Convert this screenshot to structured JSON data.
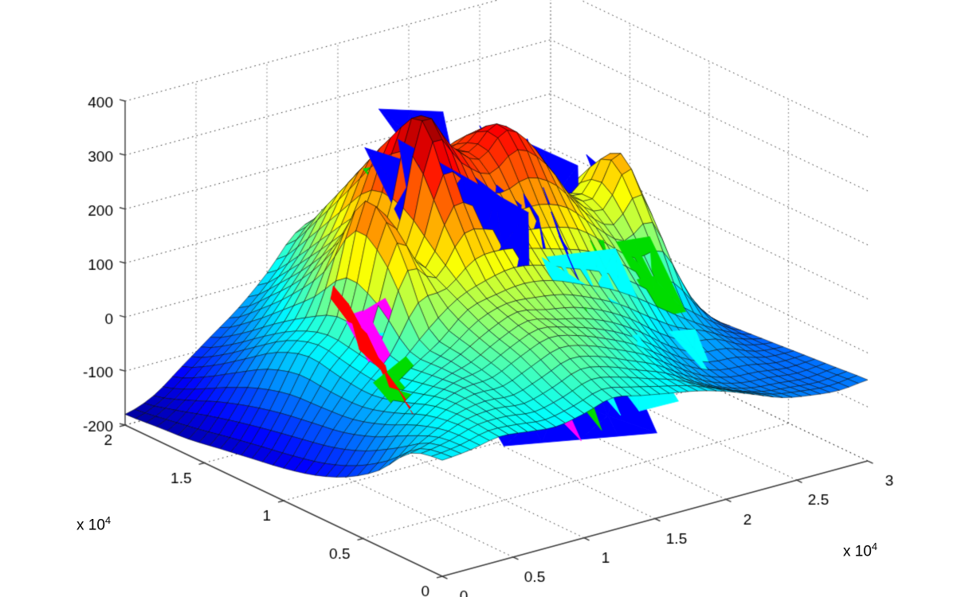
{
  "figure": {
    "background": "#ffffff"
  },
  "chart_data": {
    "type": "surface",
    "title": "",
    "colormap": "jet",
    "view": {
      "azimuth_deg": -37.5,
      "elevation_deg": 30,
      "projection": "orthographic"
    },
    "x_axis": {
      "label": "",
      "unit_scale": 10000,
      "range_units": [
        0,
        3
      ],
      "ticks": [
        "0",
        "0.5",
        "1",
        "1.5",
        "2",
        "2.5",
        "3"
      ],
      "exponent": {
        "base": "x 10",
        "power": "4"
      }
    },
    "y_axis": {
      "label": "",
      "unit_scale": 10000,
      "range_units": [
        0,
        2
      ],
      "ticks": [
        "0",
        "0.5",
        "1",
        "1.5",
        "2"
      ],
      "exponent": {
        "base": "x 10",
        "power": "4"
      }
    },
    "z_axis": {
      "label": "",
      "range": [
        -200,
        400
      ],
      "ticks": [
        "-200",
        "-100",
        "0",
        "100",
        "200",
        "300",
        "400"
      ]
    },
    "grid": {
      "style": "dotted",
      "wall_vertical_color": "#909090",
      "level_line_color": "#3c3c3c",
      "axis_line_color": "#3c3c3c",
      "tick_label_color": "#000000"
    },
    "surface": {
      "mesh_edge_color": "#000000",
      "x_units": [
        0,
        0.2,
        0.4,
        0.6,
        0.8,
        1.0,
        1.2,
        1.4,
        1.6,
        1.8,
        2.0,
        2.2,
        2.4,
        2.6,
        2.8,
        3.0
      ],
      "y_units": [
        0,
        0.2,
        0.4,
        0.6,
        0.8,
        1.0,
        1.2,
        1.4,
        1.6,
        1.8,
        2.0
      ],
      "z_grid_rows_by_y": [
        [
          15,
          20,
          30,
          25,
          20,
          30,
          45,
          35,
          25,
          15,
          0,
          -20,
          -40,
          -50,
          -55,
          -50
        ],
        [
          0,
          15,
          35,
          40,
          35,
          50,
          70,
          60,
          40,
          20,
          -10,
          -35,
          -50,
          -55,
          -60,
          -55
        ],
        [
          -60,
          -10,
          30,
          50,
          55,
          80,
          100,
          90,
          70,
          45,
          10,
          -25,
          -45,
          -50,
          -60,
          -60
        ],
        [
          -100,
          -40,
          10,
          45,
          70,
          100,
          120,
          110,
          100,
          80,
          50,
          10,
          -20,
          -30,
          -55,
          -65
        ],
        [
          -125,
          -60,
          -5,
          40,
          90,
          130,
          150,
          160,
          150,
          130,
          110,
          80,
          40,
          0,
          -40,
          -70
        ],
        [
          -140,
          -70,
          0,
          60,
          220,
          160,
          260,
          240,
          220,
          220,
          200,
          150,
          110,
          130,
          0,
          -75
        ],
        [
          -150,
          -80,
          10,
          70,
          270,
          180,
          390,
          330,
          290,
          330,
          280,
          190,
          160,
          230,
          40,
          -80
        ],
        [
          -160,
          -95,
          -10,
          40,
          150,
          200,
          330,
          310,
          280,
          300,
          250,
          180,
          140,
          160,
          20,
          -90
        ],
        [
          -170,
          -115,
          -50,
          0,
          70,
          140,
          240,
          260,
          230,
          220,
          180,
          130,
          90,
          60,
          -30,
          -100
        ],
        [
          -175,
          -140,
          -90,
          -45,
          10,
          70,
          150,
          170,
          150,
          130,
          90,
          50,
          10,
          -30,
          -80,
          -110
        ],
        [
          -180,
          -160,
          -120,
          -80,
          -40,
          10,
          70,
          90,
          80,
          60,
          30,
          -10,
          -50,
          -80,
          -100,
          -120
        ]
      ]
    },
    "fault_patches": [
      {
        "color": "#0000FF",
        "vertices": [
          [
            1.12,
            1.28,
            350
          ],
          [
            1.5,
            0.8,
            255
          ],
          [
            1.5,
            0.78,
            -90
          ],
          [
            1.1,
            1.0,
            -50
          ]
        ]
      },
      {
        "color": "#0000FF",
        "vertices": [
          [
            1.34,
            1.45,
            345
          ],
          [
            1.58,
            0.95,
            235
          ],
          [
            1.5,
            0.82,
            -70
          ]
        ]
      },
      {
        "color": "#0000FF",
        "vertices": [
          [
            1.6,
            1.55,
            305
          ],
          [
            1.64,
            0.97,
            235
          ],
          [
            1.55,
            0.86,
            -95
          ]
        ]
      },
      {
        "color": "#0000FF",
        "vertices": [
          [
            1.92,
            1.48,
            290
          ],
          [
            1.66,
            0.88,
            225
          ],
          [
            1.78,
            0.76,
            -60
          ]
        ]
      },
      {
        "color": "#0000FF",
        "vertices": [
          [
            2.14,
            1.38,
            265
          ],
          [
            1.72,
            0.8,
            195
          ],
          [
            1.94,
            0.64,
            -45
          ]
        ]
      },
      {
        "color": "#0000FF",
        "vertices": [
          [
            1.15,
            0.96,
            -15
          ],
          [
            1.96,
            0.62,
            -15
          ],
          [
            1.96,
            0.4,
            -130
          ],
          [
            1.15,
            0.64,
            -130
          ]
        ]
      },
      {
        "color": "#0000FF",
        "vertices": [
          [
            2.02,
            1.08,
            140
          ],
          [
            2.44,
            0.94,
            55
          ],
          [
            2.44,
            0.62,
            -90
          ],
          [
            2.02,
            0.64,
            -70
          ]
        ]
      },
      {
        "color": "#0000FF",
        "vertices": [
          [
            2.52,
            1.22,
            125
          ],
          [
            2.74,
            1.06,
            25
          ],
          [
            2.6,
            0.94,
            -50
          ]
        ]
      },
      {
        "color": "#0000FF",
        "vertices": [
          [
            1.32,
            1.58,
            350
          ],
          [
            1.48,
            1.32,
            370
          ],
          [
            1.44,
            1.12,
            175
          ]
        ]
      },
      {
        "color": "#0000FF",
        "vertices": [
          [
            1.02,
            1.4,
            325
          ],
          [
            1.2,
            1.22,
            305
          ],
          [
            1.1,
            1.1,
            135
          ]
        ]
      },
      {
        "color": "#0000FF",
        "vertices": [
          [
            2.3,
            1.64,
            225
          ],
          [
            2.52,
            1.4,
            185
          ],
          [
            2.36,
            1.24,
            -5
          ]
        ]
      },
      {
        "color": "#0000FF",
        "vertices": [
          [
            2.56,
            1.38,
            205
          ],
          [
            2.7,
            1.2,
            145
          ],
          [
            2.6,
            1.12,
            15
          ]
        ]
      },
      {
        "color": "#0000FF",
        "vertices": [
          [
            1.46,
            0.78,
            55
          ],
          [
            1.62,
            0.7,
            35
          ],
          [
            1.52,
            0.56,
            -65
          ]
        ]
      },
      {
        "color": "#0000FF",
        "vertices": [
          [
            1.7,
            1.62,
            280
          ],
          [
            1.78,
            1.1,
            180
          ],
          [
            1.68,
            0.98,
            -40
          ]
        ]
      },
      {
        "color": "#00FFFF",
        "vertices": [
          [
            1.25,
            1.14,
            215
          ],
          [
            1.54,
            1.06,
            165
          ],
          [
            1.56,
            0.86,
            35
          ],
          [
            1.28,
            0.9,
            55
          ]
        ]
      },
      {
        "color": "#00FFFF",
        "vertices": [
          [
            1.62,
            0.82,
            160
          ],
          [
            2.16,
            0.84,
            135
          ],
          [
            2.2,
            0.68,
            25
          ],
          [
            1.66,
            0.64,
            35
          ]
        ]
      },
      {
        "color": "#00FFFF",
        "vertices": [
          [
            1.02,
            0.78,
            50
          ],
          [
            1.45,
            0.73,
            35
          ],
          [
            1.45,
            0.52,
            -90
          ],
          [
            1.02,
            0.56,
            -80
          ]
        ]
      },
      {
        "color": "#00FFFF",
        "vertices": [
          [
            1.58,
            0.48,
            45
          ],
          [
            1.96,
            0.52,
            35
          ],
          [
            2.0,
            0.3,
            -60
          ],
          [
            1.68,
            0.26,
            -50
          ]
        ]
      },
      {
        "color": "#00FFFF",
        "vertices": [
          [
            1.32,
            0.38,
            60
          ],
          [
            1.55,
            0.43,
            45
          ],
          [
            1.48,
            0.2,
            -35
          ]
        ]
      },
      {
        "color": "#00FFFF",
        "vertices": [
          [
            0.56,
            0.98,
            70
          ],
          [
            0.72,
            1.0,
            60
          ],
          [
            0.66,
            0.86,
            -10
          ]
        ]
      },
      {
        "color": "#00FFFF",
        "vertices": [
          [
            2.18,
            0.52,
            25
          ],
          [
            2.42,
            0.57,
            5
          ],
          [
            2.34,
            0.35,
            -65
          ]
        ]
      },
      {
        "color": "#00DC00",
        "vertices": [
          [
            0.32,
            0.72,
            35
          ],
          [
            0.66,
            0.82,
            45
          ],
          [
            0.7,
            0.58,
            -20
          ],
          [
            0.38,
            0.52,
            -28
          ]
        ]
      },
      {
        "color": "#00DC00",
        "vertices": [
          [
            0.72,
            1.12,
            140
          ],
          [
            0.95,
            1.18,
            130
          ],
          [
            0.88,
            0.98,
            40
          ]
        ]
      },
      {
        "color": "#00DC00",
        "vertices": [
          [
            1.48,
            0.62,
            95
          ],
          [
            1.76,
            0.67,
            78
          ],
          [
            1.68,
            0.45,
            -5
          ]
        ]
      },
      {
        "color": "#00DC00",
        "vertices": [
          [
            2.28,
            0.94,
            125
          ],
          [
            2.58,
            1.0,
            105
          ],
          [
            2.52,
            0.72,
            10
          ],
          [
            2.3,
            0.7,
            18
          ]
        ]
      },
      {
        "color": "#00DC00",
        "vertices": [
          [
            1.12,
            1.5,
            265
          ],
          [
            1.36,
            1.54,
            250
          ],
          [
            1.28,
            1.32,
            155
          ]
        ]
      },
      {
        "color": "#00DC00",
        "vertices": [
          [
            1.18,
            0.3,
            35
          ],
          [
            1.38,
            0.35,
            25
          ],
          [
            1.28,
            0.14,
            -40
          ]
        ]
      },
      {
        "color": "#00DC00",
        "vertices": [
          [
            2.05,
            0.9,
            150
          ],
          [
            2.22,
            0.97,
            128
          ],
          [
            2.12,
            0.76,
            28
          ]
        ]
      },
      {
        "color": "#00DC00",
        "vertices": [
          [
            0.95,
            0.9,
            60
          ],
          [
            1.1,
            0.94,
            50
          ],
          [
            1.03,
            0.78,
            -15
          ]
        ]
      },
      {
        "color": "#FF00FF",
        "vertices": [
          [
            0.42,
            0.98,
            105
          ],
          [
            0.76,
            1.04,
            115
          ],
          [
            0.8,
            0.9,
            35
          ],
          [
            0.48,
            0.86,
            25
          ]
        ]
      },
      {
        "color": "#FF00FF",
        "vertices": [
          [
            0.78,
            0.8,
            15
          ],
          [
            1.52,
            0.86,
            25
          ],
          [
            1.52,
            0.74,
            -18
          ],
          [
            0.78,
            0.66,
            -28
          ]
        ]
      },
      {
        "color": "#FF00FF",
        "vertices": [
          [
            1.52,
            0.56,
            65
          ],
          [
            1.8,
            0.61,
            48
          ],
          [
            1.72,
            0.4,
            -40
          ]
        ]
      },
      {
        "color": "#FF00FF",
        "vertices": [
          [
            2.02,
            0.8,
            95
          ],
          [
            2.22,
            0.84,
            78
          ],
          [
            2.14,
            0.62,
            -8
          ]
        ]
      },
      {
        "color": "#FF00FF",
        "vertices": [
          [
            1.08,
            0.36,
            5
          ],
          [
            1.28,
            0.41,
            -5
          ],
          [
            1.18,
            0.18,
            -58
          ]
        ]
      },
      {
        "color": "#FF00FF",
        "vertices": [
          [
            0.56,
            1.1,
            88
          ],
          [
            0.74,
            1.14,
            82
          ],
          [
            0.66,
            1.0,
            5
          ]
        ]
      },
      {
        "color": "#FF0000",
        "vertices": [
          [
            0.44,
            1.08,
            155
          ],
          [
            0.52,
            1.06,
            120
          ],
          [
            0.47,
            1.02,
            110
          ],
          [
            0.55,
            0.97,
            75
          ],
          [
            0.5,
            0.93,
            65
          ],
          [
            0.56,
            0.86,
            30
          ],
          [
            0.52,
            0.8,
            15
          ],
          [
            0.56,
            0.7,
            -10
          ],
          [
            0.5,
            0.6,
            -30
          ],
          [
            0.46,
            0.48,
            -45
          ],
          [
            0.42,
            0.4,
            -58
          ],
          [
            0.36,
            0.42,
            -22
          ],
          [
            0.42,
            0.55,
            -2
          ],
          [
            0.4,
            0.68,
            18
          ],
          [
            0.44,
            0.78,
            42
          ],
          [
            0.4,
            0.88,
            68
          ],
          [
            0.46,
            0.98,
            102
          ],
          [
            0.4,
            1.06,
            138
          ]
        ]
      },
      {
        "color": "#FF0000",
        "vertices": [
          [
            1.0,
            0.76,
            70
          ],
          [
            1.16,
            0.79,
            58
          ],
          [
            1.08,
            0.62,
            -20
          ]
        ]
      },
      {
        "color": "#FF0000",
        "vertices": [
          [
            1.45,
            0.52,
            5
          ],
          [
            1.58,
            0.56,
            -5
          ],
          [
            1.5,
            0.4,
            -48
          ]
        ]
      },
      {
        "color": "#FF0000",
        "vertices": [
          [
            1.55,
            0.62,
            100
          ],
          [
            1.68,
            0.66,
            85
          ],
          [
            1.6,
            0.52,
            18
          ]
        ]
      }
    ]
  }
}
